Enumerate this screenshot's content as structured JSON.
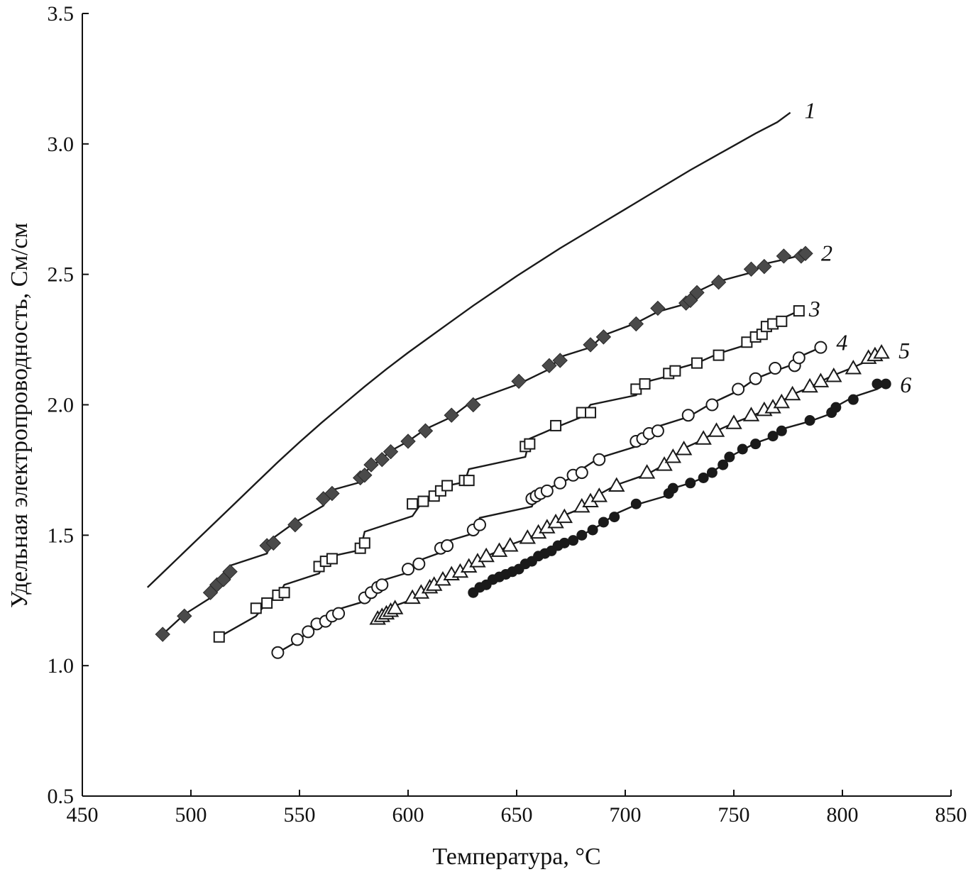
{
  "chart_data": {
    "type": "scatter",
    "title": "",
    "xlabel": "Температура, °C",
    "ylabel": "Удельная электропроводность, См/см",
    "xlim": [
      450,
      850
    ],
    "ylim": [
      0.5,
      3.5
    ],
    "x_ticks": [
      "450",
      "500",
      "550",
      "600",
      "650",
      "700",
      "750",
      "800",
      "850"
    ],
    "y_ticks": [
      "0.5",
      "1.0",
      "1.5",
      "2.0",
      "2.5",
      "3.0",
      "3.5"
    ],
    "grid": false,
    "legend": "none",
    "series": [
      {
        "name": "1",
        "marker": "none",
        "color": "#1a1a1a",
        "x": [
          480,
          490,
          500,
          510,
          520,
          530,
          540,
          550,
          560,
          570,
          580,
          590,
          600,
          610,
          620,
          630,
          640,
          650,
          660,
          670,
          680,
          690,
          700,
          710,
          720,
          730,
          740,
          750,
          760,
          770,
          776
        ],
        "y": [
          1.3,
          1.38,
          1.46,
          1.54,
          1.62,
          1.7,
          1.78,
          1.86,
          1.93,
          2.0,
          2.07,
          2.14,
          2.2,
          2.26,
          2.32,
          2.38,
          2.44,
          2.49,
          2.55,
          2.6,
          2.65,
          2.7,
          2.75,
          2.8,
          2.85,
          2.9,
          2.95,
          2.99,
          3.04,
          3.09,
          3.12
        ]
      },
      {
        "name": "2",
        "marker": "filled-diamond",
        "color": "#4a4a4a",
        "x": [
          487,
          497,
          509,
          512,
          515,
          518,
          535,
          538,
          548,
          561,
          565,
          578,
          580,
          583,
          588,
          592,
          600,
          608,
          620,
          630,
          651,
          665,
          670,
          684,
          690,
          705,
          715,
          728,
          730,
          733,
          743,
          758,
          764,
          773,
          781,
          783
        ],
        "y": [
          1.12,
          1.19,
          1.28,
          1.31,
          1.33,
          1.36,
          1.46,
          1.47,
          1.54,
          1.64,
          1.66,
          1.72,
          1.73,
          1.77,
          1.79,
          1.82,
          1.86,
          1.9,
          1.96,
          2.0,
          2.09,
          2.15,
          2.17,
          2.23,
          2.26,
          2.31,
          2.37,
          2.39,
          2.4,
          2.43,
          2.47,
          2.52,
          2.53,
          2.57,
          2.57,
          2.58
        ]
      },
      {
        "name": "3",
        "marker": "open-square",
        "color": "#1a1a1a",
        "x": [
          513,
          530,
          535,
          540,
          543,
          559,
          562,
          565,
          578,
          580,
          602,
          607,
          612,
          615,
          618,
          626,
          628,
          654,
          656,
          668,
          680,
          684,
          705,
          709,
          720,
          723,
          733,
          743,
          756,
          760,
          763,
          765,
          768,
          772,
          780
        ],
        "y": [
          1.11,
          1.22,
          1.24,
          1.27,
          1.28,
          1.38,
          1.4,
          1.41,
          1.45,
          1.47,
          1.62,
          1.63,
          1.65,
          1.67,
          1.69,
          1.71,
          1.71,
          1.84,
          1.85,
          1.92,
          1.97,
          1.97,
          2.06,
          2.08,
          2.12,
          2.13,
          2.16,
          2.19,
          2.24,
          2.26,
          2.27,
          2.3,
          2.31,
          2.32,
          2.36
        ]
      },
      {
        "name": "4",
        "marker": "open-circle",
        "color": "#1a1a1a",
        "x": [
          540,
          549,
          554,
          558,
          562,
          565,
          568,
          580,
          583,
          586,
          588,
          600,
          605,
          615,
          618,
          630,
          633,
          657,
          659,
          661,
          664,
          670,
          676,
          680,
          688,
          705,
          708,
          711,
          715,
          729,
          740,
          752,
          760,
          769,
          778,
          780,
          790
        ],
        "y": [
          1.05,
          1.1,
          1.13,
          1.16,
          1.17,
          1.19,
          1.2,
          1.26,
          1.28,
          1.3,
          1.31,
          1.37,
          1.39,
          1.45,
          1.46,
          1.52,
          1.54,
          1.64,
          1.65,
          1.66,
          1.67,
          1.7,
          1.73,
          1.74,
          1.79,
          1.86,
          1.87,
          1.89,
          1.9,
          1.96,
          2.0,
          2.06,
          2.1,
          2.14,
          2.15,
          2.18,
          2.22
        ]
      },
      {
        "name": "5",
        "marker": "open-triangle",
        "color": "#1a1a1a",
        "x": [
          586,
          588,
          590,
          592,
          594,
          602,
          606,
          610,
          612,
          616,
          620,
          624,
          628,
          632,
          636,
          642,
          647,
          655,
          660,
          664,
          668,
          672,
          680,
          684,
          688,
          696,
          710,
          718,
          722,
          727,
          736,
          742,
          750,
          758,
          764,
          768,
          772,
          777,
          785,
          790,
          796,
          805,
          812,
          815,
          818
        ],
        "y": [
          1.18,
          1.19,
          1.2,
          1.21,
          1.22,
          1.26,
          1.28,
          1.3,
          1.31,
          1.33,
          1.35,
          1.36,
          1.38,
          1.4,
          1.42,
          1.44,
          1.46,
          1.49,
          1.51,
          1.53,
          1.55,
          1.57,
          1.61,
          1.63,
          1.65,
          1.69,
          1.74,
          1.77,
          1.8,
          1.83,
          1.87,
          1.9,
          1.93,
          1.96,
          1.98,
          1.99,
          2.01,
          2.04,
          2.07,
          2.09,
          2.11,
          2.14,
          2.18,
          2.19,
          2.2
        ]
      },
      {
        "name": "6",
        "marker": "filled-circle",
        "color": "#1a1a1a",
        "x": [
          630,
          633,
          636,
          639,
          642,
          645,
          648,
          651,
          654,
          657,
          660,
          663,
          666,
          669,
          672,
          676,
          680,
          685,
          690,
          695,
          705,
          720,
          722,
          730,
          736,
          740,
          745,
          748,
          754,
          760,
          768,
          772,
          785,
          795,
          797,
          805,
          816,
          820
        ],
        "y": [
          1.28,
          1.3,
          1.31,
          1.33,
          1.34,
          1.35,
          1.36,
          1.37,
          1.39,
          1.4,
          1.42,
          1.43,
          1.44,
          1.46,
          1.47,
          1.48,
          1.5,
          1.52,
          1.55,
          1.57,
          1.62,
          1.66,
          1.68,
          1.7,
          1.72,
          1.74,
          1.77,
          1.8,
          1.83,
          1.85,
          1.88,
          1.9,
          1.94,
          1.97,
          1.99,
          2.02,
          2.08,
          2.08
        ]
      }
    ]
  }
}
